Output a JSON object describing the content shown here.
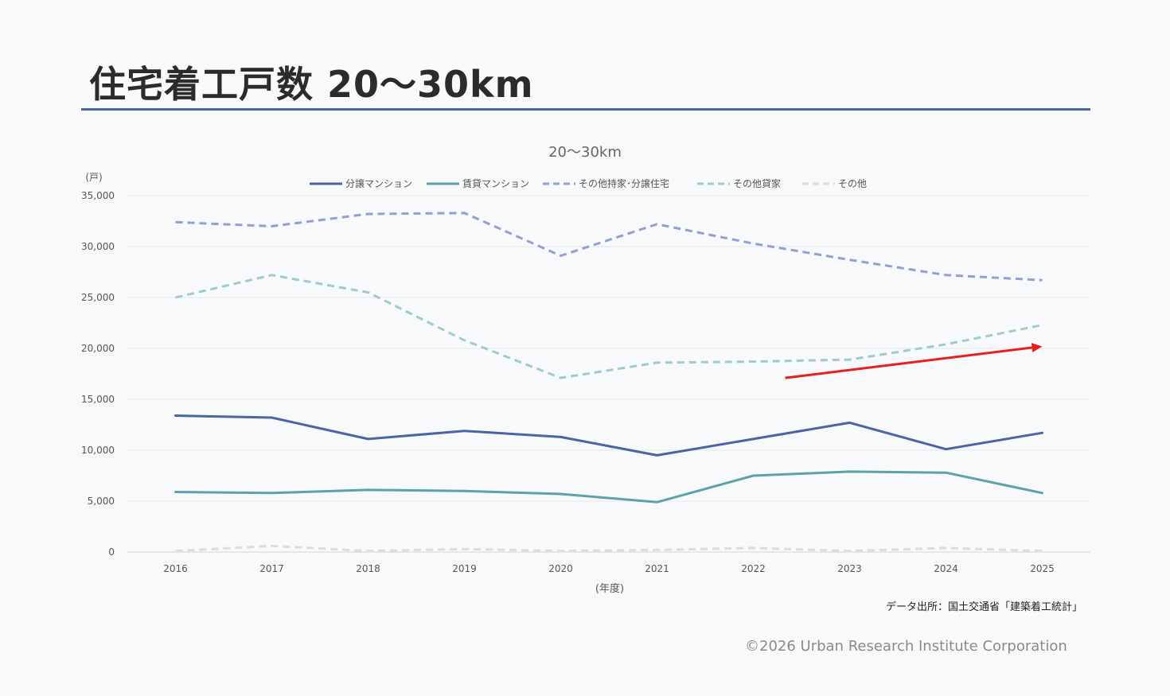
{
  "page": {
    "title": "住宅着工戸数 20～30km",
    "source": "データ出所：国土交通省「建築着工統計」",
    "copyright": "©2026 Urban Research Institute Corporation"
  },
  "chart_data": {
    "type": "line",
    "title": "20～30km",
    "ylabel": "(戸)",
    "xlabel": "(年度)",
    "categories": [
      "2016",
      "2017",
      "2018",
      "2019",
      "2020",
      "2021",
      "2022",
      "2023",
      "2024",
      "2025"
    ],
    "ylim": [
      0,
      35000
    ],
    "yticks": [
      0,
      5000,
      10000,
      15000,
      20000,
      25000,
      30000,
      35000
    ],
    "ytick_labels": [
      "0",
      "5,000",
      "10,000",
      "15,000",
      "20,000",
      "25,000",
      "30,000",
      "35,000"
    ],
    "grid": true,
    "legend_position": "top",
    "series": [
      {
        "name": "分譲マンション",
        "color": "#4a64a6",
        "style": "solid",
        "values": [
          13400,
          13200,
          11100,
          11900,
          11300,
          9500,
          11100,
          12700,
          10100,
          11700
        ]
      },
      {
        "name": "賃貸マンション",
        "color": "#5ba3aa",
        "style": "solid",
        "values": [
          5900,
          5800,
          6100,
          6000,
          5700,
          4900,
          7500,
          7900,
          7800,
          5800
        ]
      },
      {
        "name": "その他持家･分譲住宅",
        "color": "#8ea3cf",
        "style": "dashed",
        "values": [
          32400,
          32000,
          33200,
          33300,
          29100,
          32200,
          30300,
          28700,
          27200,
          26700
        ]
      },
      {
        "name": "その他貸家",
        "color": "#9ecbd0",
        "style": "dashed",
        "values": [
          25000,
          27200,
          25500,
          20800,
          17100,
          18600,
          18700,
          18900,
          20400,
          22300
        ]
      },
      {
        "name": "その他",
        "color": "#dcdcdc",
        "style": "dashed",
        "values": [
          100,
          600,
          100,
          300,
          100,
          200,
          400,
          100,
          400,
          100
        ]
      }
    ],
    "annotations": [
      {
        "type": "arrow",
        "color": "#e8201c",
        "from": {
          "x": "2022",
          "y": 17100
        },
        "to": {
          "x": "2025",
          "y": 20200
        }
      }
    ]
  }
}
